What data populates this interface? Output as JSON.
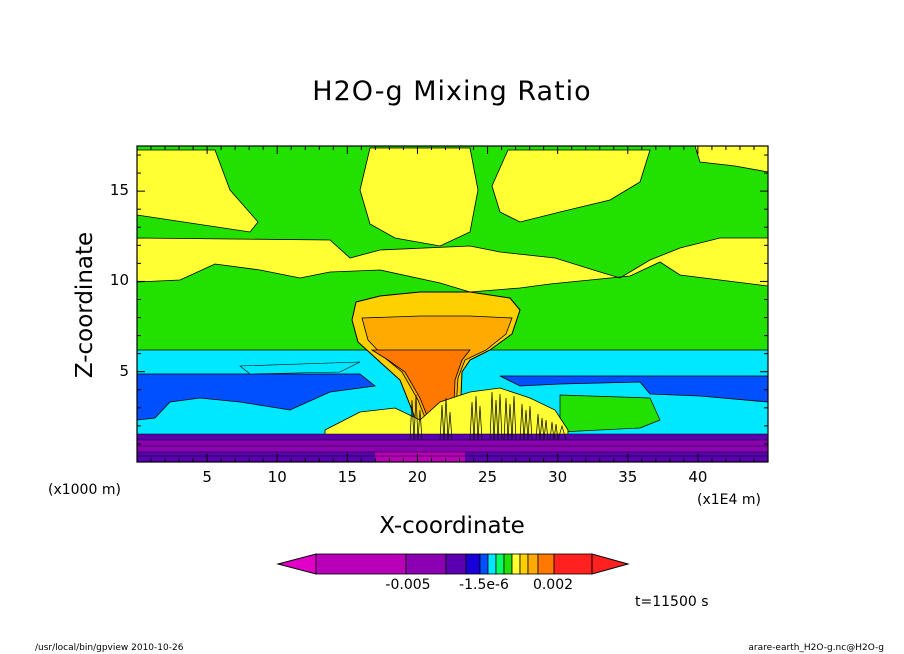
{
  "chart_data": {
    "type": "heatmap",
    "title": "H2O-g Mixing Ratio",
    "xlabel": "X-coordinate",
    "ylabel": "Z-coordinate",
    "x_unit_label": "(x1E4 m)",
    "y_unit_label": "(x1000 m)",
    "xlim": [
      0,
      45
    ],
    "ylim": [
      0,
      17.5
    ],
    "x_ticks": [
      5,
      10,
      15,
      20,
      25,
      30,
      35,
      40
    ],
    "y_ticks": [
      5,
      10,
      15
    ],
    "colorbar": {
      "colors": [
        "#e000c8",
        "#b800b8",
        "#8c00b4",
        "#5a00b0",
        "#1800d8",
        "#0050ff",
        "#00e8ff",
        "#00ff64",
        "#22e000",
        "#ffff33",
        "#ffd000",
        "#ffaa00",
        "#ff7800",
        "#ff2020"
      ],
      "labels": [
        "-0.005",
        "-1.5e-6",
        "0.002"
      ]
    },
    "time_label": "t=11500 s"
  },
  "footer": {
    "left": "/usr/local/bin/gpview   2010-10-26",
    "right": "arare-earth_H2O-g.nc@H2O-g"
  }
}
